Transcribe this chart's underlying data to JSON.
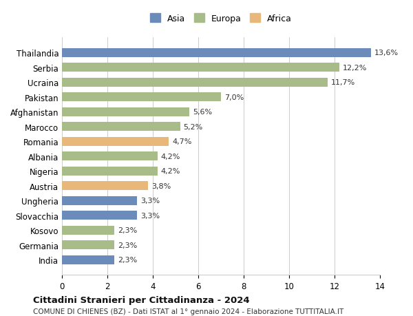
{
  "countries": [
    "India",
    "Germania",
    "Kosovo",
    "Slovacchia",
    "Ungheria",
    "Austria",
    "Nigeria",
    "Albania",
    "Romania",
    "Marocco",
    "Afghanistan",
    "Pakistan",
    "Ucraina",
    "Serbia",
    "Thailandia"
  ],
  "values": [
    13.6,
    12.2,
    11.7,
    7.0,
    5.6,
    5.2,
    4.7,
    4.2,
    4.2,
    3.8,
    3.3,
    3.3,
    2.3,
    2.3,
    2.3
  ],
  "labels": [
    "13,6%",
    "12,2%",
    "11,7%",
    "7,0%",
    "5,6%",
    "5,2%",
    "4,7%",
    "4,2%",
    "4,2%",
    "3,8%",
    "3,3%",
    "3,3%",
    "2,3%",
    "2,3%",
    "2,3%"
  ],
  "continents": [
    "Asia",
    "Europa",
    "Europa",
    "Europa",
    "Europa",
    "Europa",
    "Africa",
    "Europa",
    "Europa",
    "Africa",
    "Asia",
    "Asia",
    "Europa",
    "Europa",
    "Asia"
  ],
  "colors": {
    "Asia": "#6b8cba",
    "Europa": "#a8bc8a",
    "Africa": "#e8b87a"
  },
  "legend_order": [
    "Asia",
    "Europa",
    "Africa"
  ],
  "title": "Cittadini Stranieri per Cittadinanza - 2024",
  "subtitle": "COMUNE DI CHIENES (BZ) - Dati ISTAT al 1° gennaio 2024 - Elaborazione TUTTITALIA.IT",
  "xlim": [
    0,
    14
  ],
  "xticks": [
    0,
    2,
    4,
    6,
    8,
    10,
    12,
    14
  ],
  "background_color": "#ffffff",
  "grid_color": "#cccccc"
}
